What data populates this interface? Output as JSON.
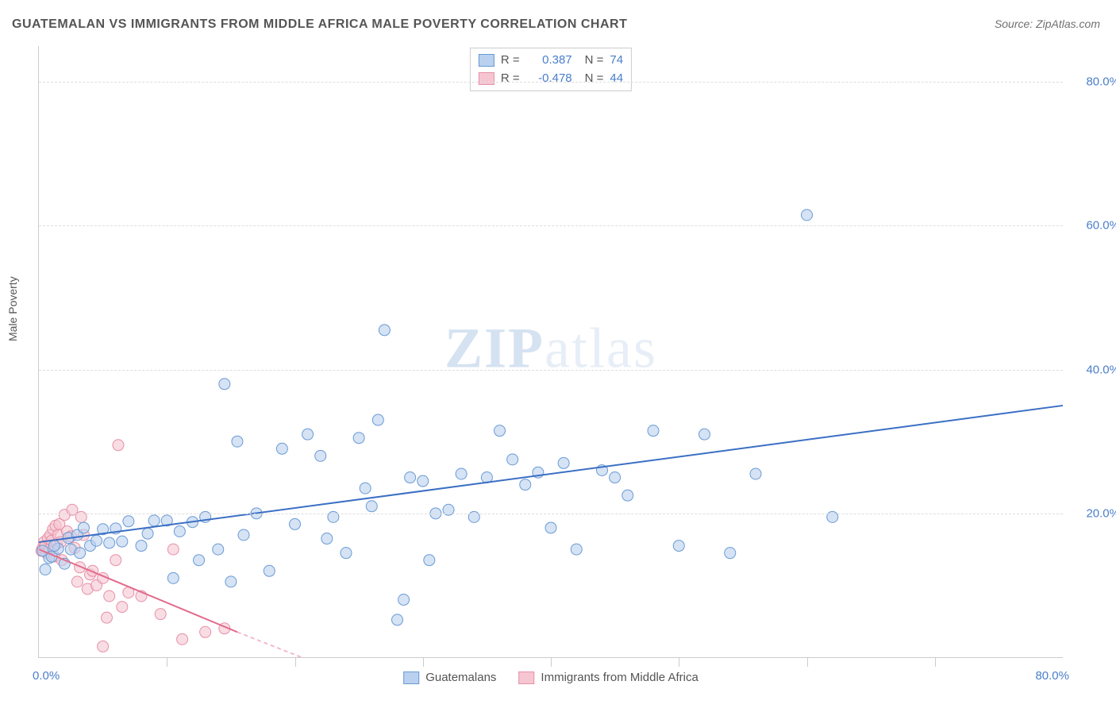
{
  "title": "GUATEMALAN VS IMMIGRANTS FROM MIDDLE AFRICA MALE POVERTY CORRELATION CHART",
  "source": "Source: ZipAtlas.com",
  "ylabel": "Male Poverty",
  "watermark": {
    "zip": "ZIP",
    "atlas": "atlas"
  },
  "chart": {
    "type": "scatter",
    "xlim": [
      0,
      80
    ],
    "ylim": [
      0,
      85
    ],
    "yticks": [
      20,
      40,
      60,
      80
    ],
    "ytick_labels": [
      "20.0%",
      "40.0%",
      "60.0%",
      "80.0%"
    ],
    "xaxis_left_label": "0.0%",
    "xaxis_right_label": "80.0%",
    "xtick_spacing": 10,
    "background_color": "#ffffff",
    "grid_color": "#dddddd",
    "colors": {
      "series1_fill": "#b9d1ef",
      "series1_stroke": "#6a9ad4",
      "series1_line": "#3b6fc4",
      "series2_fill": "#f5c6d2",
      "series2_stroke": "#e790a7",
      "series2_line": "#e26c8d",
      "series2_line_dash": "#f4b9c8",
      "axis_text": "#4a7ecb"
    },
    "marker_radius": 7,
    "marker_opacity": 0.6,
    "line_width": 2,
    "series": [
      {
        "name": "Guatemalans",
        "R": "0.387",
        "N": "74",
        "regression": {
          "x1": 0,
          "y1": 16,
          "x2": 80,
          "y2": 35
        },
        "points": [
          [
            0.5,
            12.2
          ],
          [
            0.8,
            13.8
          ],
          [
            1.0,
            14.0
          ],
          [
            1.5,
            15.1
          ],
          [
            2.0,
            13.0
          ],
          [
            2.3,
            16.6
          ],
          [
            2.5,
            15.0
          ],
          [
            3.0,
            17.0
          ],
          [
            3.2,
            14.5
          ],
          [
            3.5,
            18.0
          ],
          [
            4.0,
            15.5
          ],
          [
            4.5,
            16.2
          ],
          [
            5.0,
            17.8
          ],
          [
            5.5,
            15.9
          ],
          [
            6.0,
            17.9
          ],
          [
            6.5,
            16.1
          ],
          [
            7.0,
            18.9
          ],
          [
            8.0,
            15.5
          ],
          [
            8.5,
            17.2
          ],
          [
            9.0,
            19.0
          ],
          [
            10.0,
            19.0
          ],
          [
            10.5,
            11.0
          ],
          [
            11.0,
            17.5
          ],
          [
            12.0,
            18.8
          ],
          [
            12.5,
            13.5
          ],
          [
            13.0,
            19.5
          ],
          [
            14.0,
            15.0
          ],
          [
            14.5,
            38.0
          ],
          [
            15.0,
            10.5
          ],
          [
            15.5,
            30.0
          ],
          [
            16.0,
            17.0
          ],
          [
            17.0,
            20.0
          ],
          [
            18.0,
            12.0
          ],
          [
            19.0,
            29.0
          ],
          [
            20.0,
            18.5
          ],
          [
            21.0,
            31.0
          ],
          [
            22.0,
            28.0
          ],
          [
            22.5,
            16.5
          ],
          [
            23.0,
            19.5
          ],
          [
            24.0,
            14.5
          ],
          [
            25.0,
            30.5
          ],
          [
            25.5,
            23.5
          ],
          [
            26.0,
            21.0
          ],
          [
            26.5,
            33.0
          ],
          [
            27.0,
            45.5
          ],
          [
            28.0,
            5.2
          ],
          [
            28.5,
            8.0
          ],
          [
            29.0,
            25.0
          ],
          [
            30.0,
            24.5
          ],
          [
            30.5,
            13.5
          ],
          [
            31.0,
            20.0
          ],
          [
            32.0,
            20.5
          ],
          [
            33.0,
            25.5
          ],
          [
            34.0,
            19.5
          ],
          [
            35.0,
            25.0
          ],
          [
            36.0,
            31.5
          ],
          [
            37.0,
            27.5
          ],
          [
            38.0,
            24.0
          ],
          [
            39.0,
            25.7
          ],
          [
            40.0,
            18.0
          ],
          [
            41.0,
            27.0
          ],
          [
            42.0,
            15.0
          ],
          [
            44.0,
            26.0
          ],
          [
            45.0,
            25.0
          ],
          [
            46.0,
            22.5
          ],
          [
            48.0,
            31.5
          ],
          [
            50.0,
            15.5
          ],
          [
            52.0,
            31.0
          ],
          [
            54.0,
            14.5
          ],
          [
            56.0,
            25.5
          ],
          [
            60.0,
            61.5
          ],
          [
            62.0,
            19.5
          ],
          [
            0.3,
            14.8
          ],
          [
            1.2,
            15.5
          ]
        ]
      },
      {
        "name": "Immigrants from Middle Africa",
        "R": "-0.478",
        "N": "44",
        "regression_solid": {
          "x1": 0,
          "y1": 15,
          "x2": 15.5,
          "y2": 3.5
        },
        "regression_dash": {
          "x1": 15.5,
          "y1": 3.5,
          "x2": 20.5,
          "y2": 0
        },
        "points": [
          [
            0.2,
            14.8
          ],
          [
            0.3,
            15.2
          ],
          [
            0.4,
            16.0
          ],
          [
            0.5,
            15.5
          ],
          [
            0.6,
            14.5
          ],
          [
            0.7,
            16.5
          ],
          [
            0.8,
            15.0
          ],
          [
            0.9,
            17.0
          ],
          [
            1.0,
            16.2
          ],
          [
            1.1,
            17.8
          ],
          [
            1.2,
            14.0
          ],
          [
            1.3,
            18.3
          ],
          [
            1.4,
            15.8
          ],
          [
            1.5,
            17.0
          ],
          [
            1.6,
            18.5
          ],
          [
            1.7,
            16.0
          ],
          [
            1.8,
            13.5
          ],
          [
            2.0,
            19.8
          ],
          [
            2.2,
            17.5
          ],
          [
            2.5,
            16.8
          ],
          [
            2.6,
            20.5
          ],
          [
            2.8,
            15.2
          ],
          [
            3.0,
            10.5
          ],
          [
            3.2,
            12.5
          ],
          [
            3.3,
            19.5
          ],
          [
            3.5,
            17.0
          ],
          [
            3.8,
            9.5
          ],
          [
            4.0,
            11.5
          ],
          [
            4.2,
            12.0
          ],
          [
            4.5,
            10.0
          ],
          [
            5.0,
            11.0
          ],
          [
            5.3,
            5.5
          ],
          [
            5.5,
            8.5
          ],
          [
            6.0,
            13.5
          ],
          [
            6.2,
            29.5
          ],
          [
            6.5,
            7.0
          ],
          [
            7.0,
            9.0
          ],
          [
            8.0,
            8.5
          ],
          [
            9.5,
            6.0
          ],
          [
            10.5,
            15.0
          ],
          [
            11.2,
            2.5
          ],
          [
            13.0,
            3.5
          ],
          [
            14.5,
            4.0
          ],
          [
            5.0,
            1.5
          ]
        ]
      }
    ],
    "legend_bottom": [
      {
        "label": "Guatemalans",
        "color_key": "series1"
      },
      {
        "label": "Immigrants from Middle Africa",
        "color_key": "series2"
      }
    ]
  }
}
